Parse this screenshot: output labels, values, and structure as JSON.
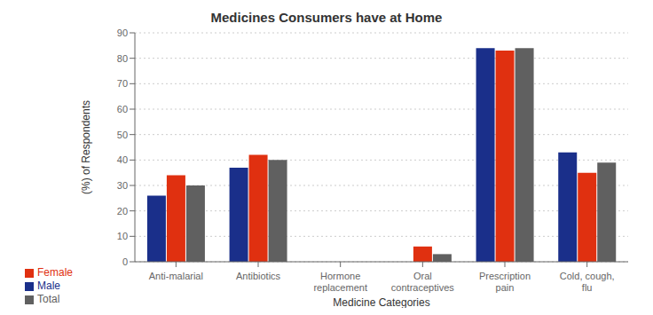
{
  "chart_data": {
    "type": "bar",
    "title": "Medicines Consumers have at Home",
    "xlabel": "Medicine Categories",
    "ylabel": "(%) of Respondents",
    "categories": [
      "Anti-malarial",
      "Antibiotics",
      "Hormone\nreplacement",
      "Oral\ncontraceptives",
      "Prescription\npain",
      "Cold, cough,\nflu"
    ],
    "series": [
      {
        "name": "Male",
        "color": "#1a2f8a",
        "values": [
          26,
          37,
          0,
          0,
          84,
          43
        ]
      },
      {
        "name": "Female",
        "color": "#e03010",
        "values": [
          34,
          42,
          0,
          6,
          83,
          35
        ]
      },
      {
        "name": "Total",
        "color": "#606060",
        "values": [
          30,
          40,
          0,
          3,
          84,
          39
        ]
      }
    ],
    "ylim": [
      0,
      90
    ],
    "yticks": [
      0,
      10,
      20,
      30,
      40,
      50,
      60,
      70,
      80,
      90
    ],
    "grid": true,
    "legend": "lower left"
  }
}
